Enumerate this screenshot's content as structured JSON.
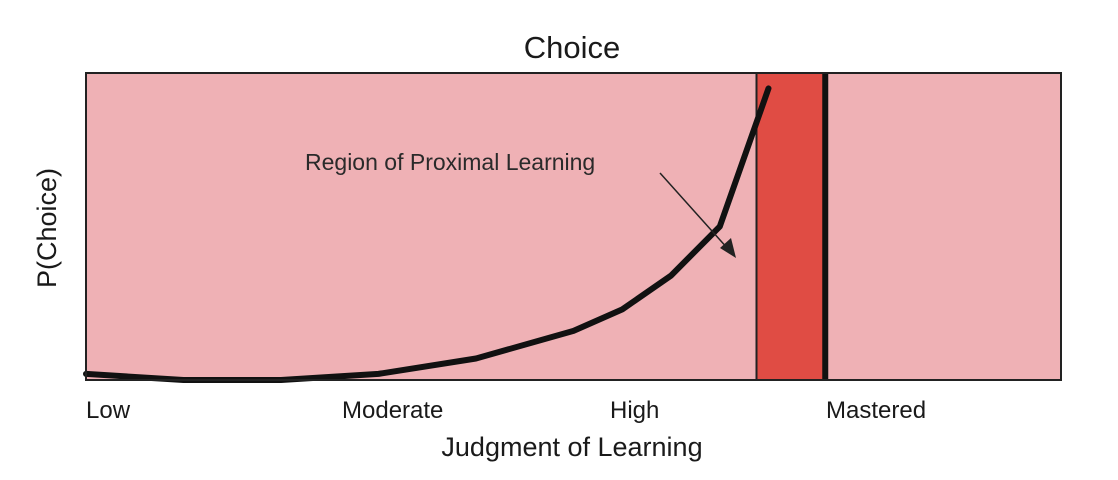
{
  "chart_data": {
    "type": "line",
    "title": "Choice",
    "xlabel": "Judgment of Learning",
    "ylabel": "P(Choice)",
    "x_categories": [
      "Low",
      "Moderate",
      "High",
      "Mastered"
    ],
    "y_ticks_shown": false,
    "grid": false,
    "legend": "none",
    "regions": [
      {
        "x_from": "Low",
        "x_to": "Mastered",
        "color": "#efb1b5"
      },
      {
        "x_from": "High",
        "x_to": "Mastered",
        "color": "#e04c44"
      }
    ],
    "annotations": [
      {
        "text": "Region of Proximal Learning",
        "points_to": "region"
      }
    ],
    "series": [
      {
        "color": "#111111",
        "x": [
          0,
          0.1,
          0.2,
          0.3,
          0.4,
          0.5,
          0.55,
          0.6,
          0.65,
          0.7
        ],
        "y": [
          0.02,
          0.0,
          0.0,
          0.02,
          0.07,
          0.16,
          0.23,
          0.34,
          0.5,
          0.95
        ]
      }
    ],
    "xlim": [
      0,
      1
    ],
    "ylim": [
      0,
      1
    ]
  }
}
